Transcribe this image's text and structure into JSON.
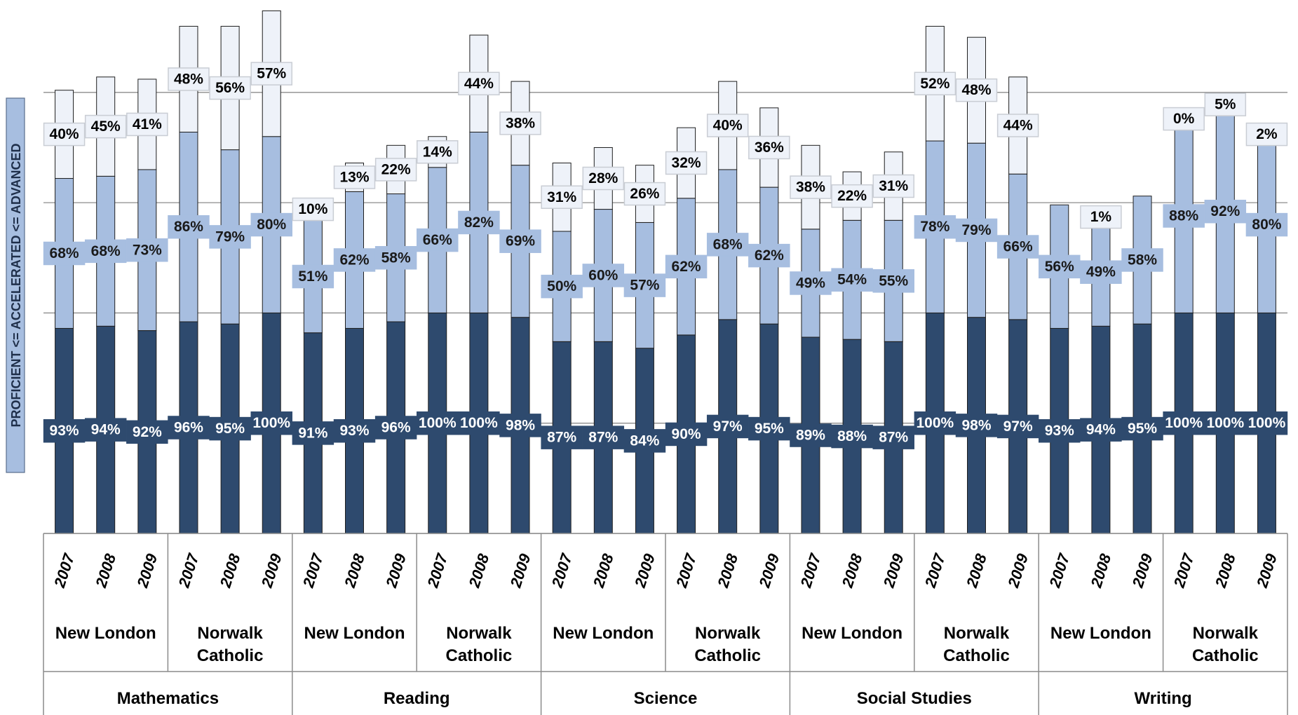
{
  "chart_data": {
    "type": "stacked_bar",
    "y_axis_label": "PROFICIENT <= ACCELERATED <= ADVANCED",
    "categories": [
      "2007",
      "2008",
      "2009",
      "2007",
      "2008",
      "2009",
      "2007",
      "2008",
      "2009",
      "2007",
      "2008",
      "2009",
      "2007",
      "2008",
      "2009",
      "2007",
      "2008",
      "2009",
      "2007",
      "2008",
      "2009",
      "2007",
      "2008",
      "2009",
      "2007",
      "2008",
      "2009",
      "2007",
      "2008",
      "2009"
    ],
    "schools": [
      "New London",
      "Norwalk Catholic",
      "New London",
      "Norwalk Catholic",
      "New London",
      "Norwalk Catholic",
      "New London",
      "Norwalk Catholic",
      "New London",
      "Norwalk Catholic"
    ],
    "subjects": [
      "Mathematics",
      "Reading",
      "Science",
      "Social Studies",
      "Writing"
    ],
    "series": [
      {
        "color": "#2e4a6e",
        "values": [
          93,
          94,
          92,
          96,
          95,
          100,
          91,
          93,
          96,
          100,
          100,
          98,
          87,
          87,
          84,
          90,
          97,
          95,
          89,
          88,
          87,
          100,
          98,
          97,
          93,
          94,
          95,
          100,
          100,
          100
        ],
        "value_labels": [
          "93%",
          "94%",
          "92%",
          "96%",
          "95%",
          "100%",
          "91%",
          "93%",
          "96%",
          "100%",
          "100%",
          "98%",
          "87%",
          "87%",
          "84%",
          "90%",
          "97%",
          "95%",
          "89%",
          "88%",
          "87%",
          "100%",
          "98%",
          "97%",
          "93%",
          "94%",
          "95%",
          "100%",
          "100%",
          "100%"
        ]
      },
      {
        "color": "#a7bee0",
        "values": [
          68,
          68,
          73,
          86,
          79,
          80,
          51,
          62,
          58,
          66,
          82,
          69,
          50,
          60,
          57,
          62,
          68,
          62,
          49,
          54,
          55,
          78,
          79,
          66,
          56,
          49,
          58,
          88,
          92,
          80
        ],
        "value_labels": [
          "68%",
          "68%",
          "73%",
          "86%",
          "79%",
          "80%",
          "51%",
          "62%",
          "58%",
          "66%",
          "82%",
          "69%",
          "50%",
          "60%",
          "57%",
          "62%",
          "68%",
          "62%",
          "49%",
          "54%",
          "55%",
          "78%",
          "79%",
          "66%",
          "56%",
          "49%",
          "58%",
          "88%",
          "92%",
          "80%"
        ]
      },
      {
        "color": "#eef2f9",
        "values": [
          40,
          45,
          41,
          48,
          56,
          57,
          10,
          13,
          22,
          14,
          44,
          38,
          31,
          28,
          26,
          32,
          40,
          36,
          38,
          22,
          31,
          52,
          48,
          44,
          null,
          1,
          null,
          0,
          5,
          2
        ],
        "value_labels": [
          "40%",
          "45%",
          "41%",
          "48%",
          "56%",
          "57%",
          "10%",
          "13%",
          "22%",
          "14%",
          "44%",
          "38%",
          "31%",
          "28%",
          "26%",
          "32%",
          "40%",
          "36%",
          "38%",
          "22%",
          "31%",
          "52%",
          "48%",
          "44%",
          null,
          "1%",
          null,
          "0%",
          "5%",
          "2%"
        ]
      }
    ],
    "ylim": [
      0,
      240
    ],
    "yticks": [
      0,
      50,
      100,
      150,
      200
    ],
    "grid": true
  }
}
